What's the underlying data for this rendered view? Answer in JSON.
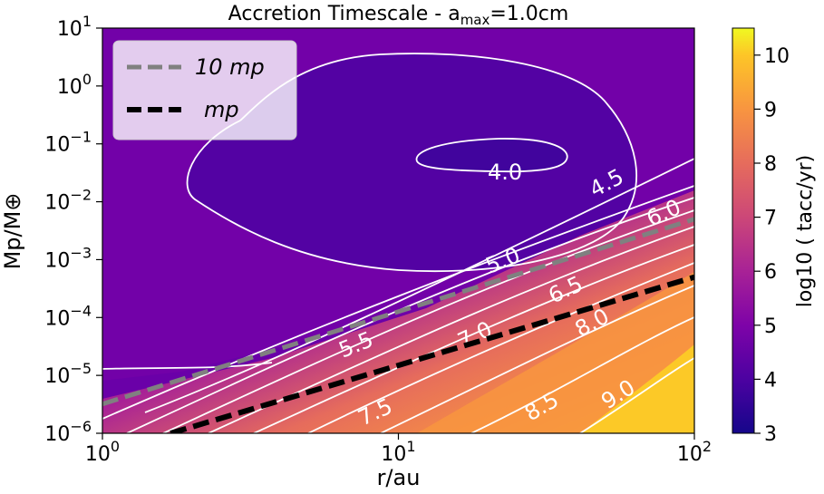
{
  "chart_data": {
    "type": "contourf",
    "title": "Accretion Timescale - a",
    "title_sub": "max",
    "title_suffix": "=1.0cm",
    "xlabel": "r/au",
    "ylabel": "Mp/M⊕",
    "x_scale": "log",
    "y_scale": "log",
    "xlim": [
      1,
      100
    ],
    "ylim": [
      1e-06,
      10
    ],
    "x_ticks": [
      {
        "value": 1,
        "base": "10",
        "exp": "0"
      },
      {
        "value": 10,
        "base": "10",
        "exp": "1"
      },
      {
        "value": 100,
        "base": "10",
        "exp": "2"
      }
    ],
    "y_ticks": [
      {
        "value": 10,
        "base": "10",
        "exp": "1"
      },
      {
        "value": 1,
        "base": "10",
        "exp": "0"
      },
      {
        "value": 0.1,
        "base": "10",
        "exp": "−1"
      },
      {
        "value": 0.01,
        "base": "10",
        "exp": "−2"
      },
      {
        "value": 0.001,
        "base": "10",
        "exp": "−3"
      },
      {
        "value": 0.0001,
        "base": "10",
        "exp": "−4"
      },
      {
        "value": 1e-05,
        "base": "10",
        "exp": "−5"
      },
      {
        "value": 1e-06,
        "base": "10",
        "exp": "−6"
      }
    ],
    "colorbar": {
      "label": "log10 ( tacc/yr)",
      "range": [
        3,
        10.5
      ],
      "ticks": [
        "3",
        "4",
        "5",
        "6",
        "7",
        "8",
        "9",
        "10"
      ]
    },
    "contour_levels": [
      "4.0",
      "4.5",
      "5.0",
      "5.5",
      "6.0",
      "6.5",
      "7.0",
      "7.5",
      "8.0",
      "8.5",
      "9.0"
    ],
    "legend": {
      "position": "upper left",
      "entries": [
        {
          "label": "10 mp",
          "color": "#808080",
          "style": "dashed",
          "points": [
            [
              1,
              3.2e-06
            ],
            [
              100,
              0.005
            ]
          ]
        },
        {
          "label": "mp",
          "color": "#000000",
          "style": "dashed",
          "points": [
            [
              1.7,
              1e-06
            ],
            [
              100,
              0.0005
            ]
          ]
        }
      ]
    },
    "colors": {
      "c3": "#15068a",
      "c4": "#4c02a1",
      "c5": "#7e03a8",
      "c6": "#a82296",
      "c7": "#cc4778",
      "c8": "#e66c5c",
      "c9": "#f89540",
      "c10": "#fdc527",
      "c10_5": "#f0f921"
    }
  }
}
